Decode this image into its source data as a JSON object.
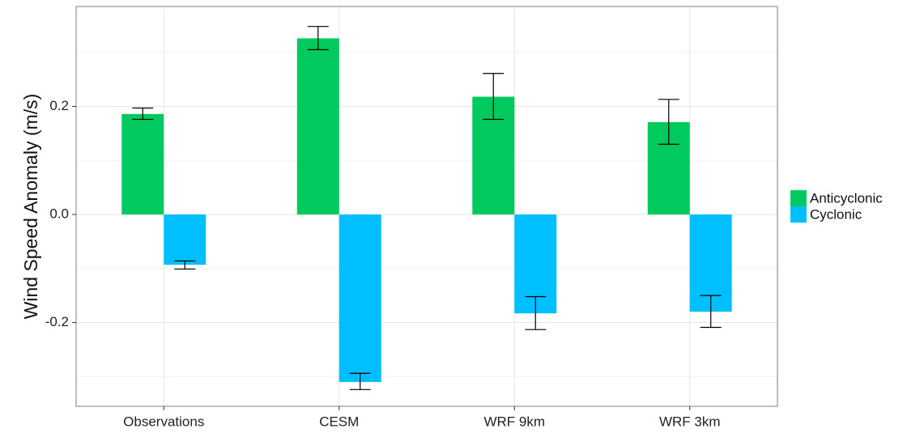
{
  "chart_data": {
    "type": "bar",
    "title": "",
    "xlabel": "",
    "ylabel": "Wind Speed Anomaly (m/s)",
    "categories": [
      "Observations",
      "CESM",
      "WRF 9km",
      "WRF 3km"
    ],
    "series": [
      {
        "name": "Anticyclonic",
        "color": "#00c95e",
        "values": [
          0.186,
          0.326,
          0.218,
          0.171
        ],
        "error_low": [
          0.176,
          0.305,
          0.176,
          0.13
        ],
        "error_high": [
          0.197,
          0.348,
          0.261,
          0.213
        ]
      },
      {
        "name": "Cyclonic",
        "color": "#00bfff",
        "values": [
          -0.093,
          -0.31,
          -0.183,
          -0.18
        ],
        "error_low": [
          -0.101,
          -0.324,
          -0.213,
          -0.209
        ],
        "error_high": [
          -0.086,
          -0.294,
          -0.152,
          -0.15
        ]
      }
    ],
    "ylim": [
      -0.355,
      0.385
    ],
    "yticks": [
      -0.2,
      0.0,
      0.2
    ],
    "ytick_labels": [
      "-0.2",
      "0.0",
      "0.2"
    ],
    "grid": true,
    "legend_position": "right"
  }
}
